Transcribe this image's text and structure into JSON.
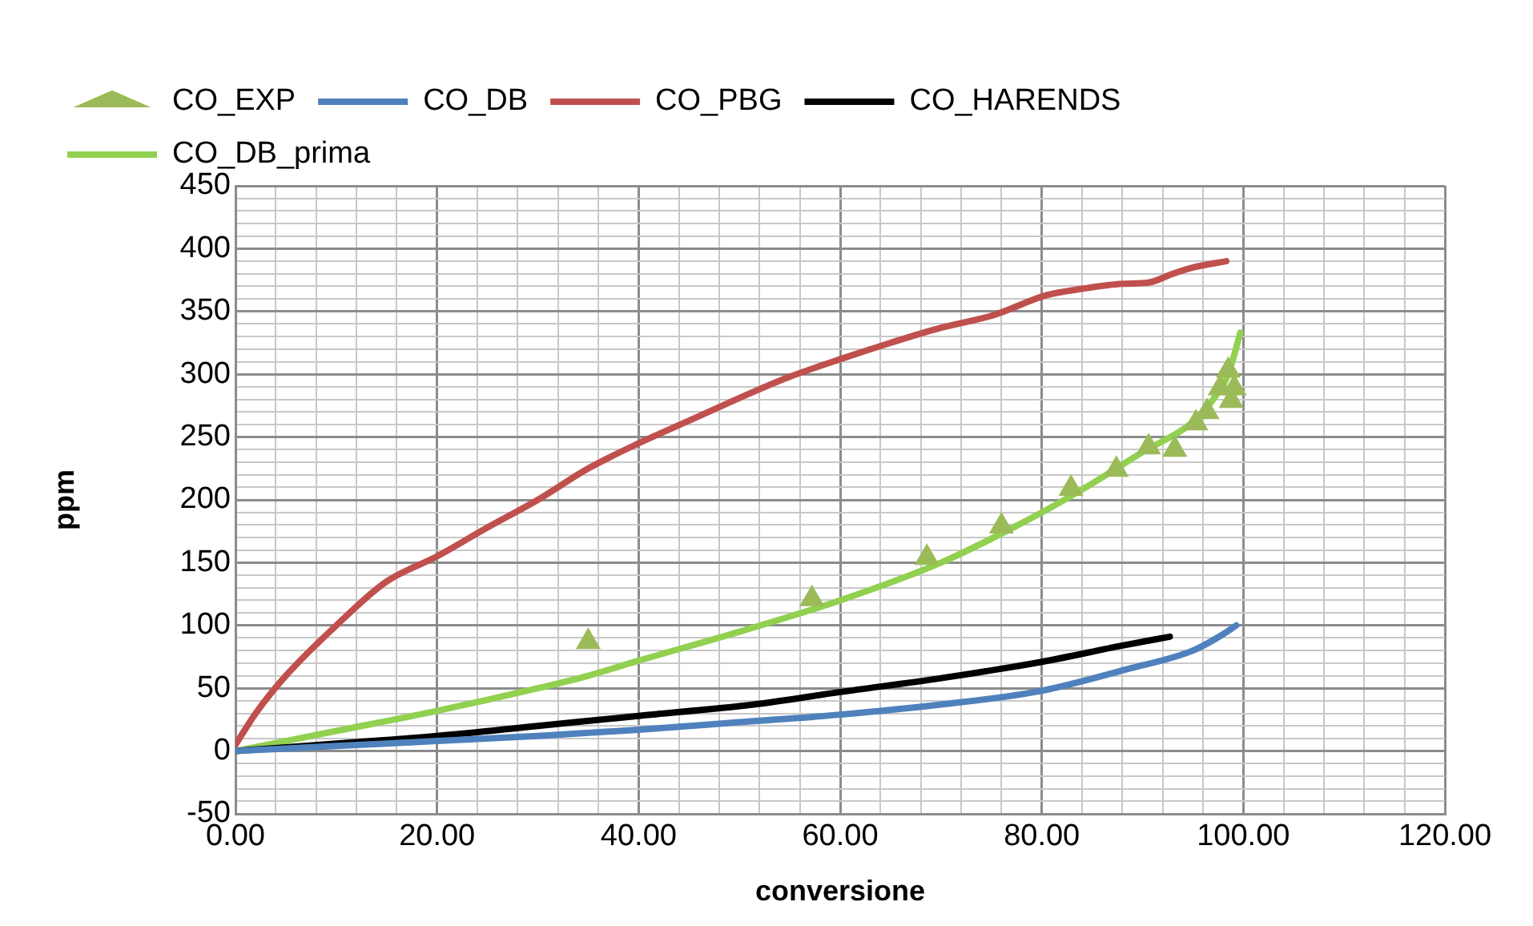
{
  "chart_data": {
    "type": "line",
    "xlabel": "conversione",
    "ylabel": "ppm",
    "legend": "top",
    "grid": true,
    "line_style": "solid",
    "xlim": [
      0,
      120
    ],
    "ylim": [
      -50,
      450
    ],
    "xticks": [
      {
        "value": 0,
        "label": "0.00"
      },
      {
        "value": 4,
        "label": null
      },
      {
        "value": 8,
        "label": null
      },
      {
        "value": 12,
        "label": null
      },
      {
        "value": 16,
        "label": null
      },
      {
        "value": 20,
        "label": "20.00"
      },
      {
        "value": 24,
        "label": null
      },
      {
        "value": 28,
        "label": null
      },
      {
        "value": 32,
        "label": null
      },
      {
        "value": 36,
        "label": null
      },
      {
        "value": 40,
        "label": "40.00"
      },
      {
        "value": 44,
        "label": null
      },
      {
        "value": 48,
        "label": null
      },
      {
        "value": 52,
        "label": null
      },
      {
        "value": 56,
        "label": null
      },
      {
        "value": 60,
        "label": "60.00"
      },
      {
        "value": 64,
        "label": null
      },
      {
        "value": 68,
        "label": null
      },
      {
        "value": 72,
        "label": null
      },
      {
        "value": 76,
        "label": null
      },
      {
        "value": 80,
        "label": "80.00"
      },
      {
        "value": 84,
        "label": null
      },
      {
        "value": 88,
        "label": null
      },
      {
        "value": 92,
        "label": null
      },
      {
        "value": 96,
        "label": null
      },
      {
        "value": 100,
        "label": "100.00"
      },
      {
        "value": 104,
        "label": null
      },
      {
        "value": 108,
        "label": null
      },
      {
        "value": 112,
        "label": null
      },
      {
        "value": 116,
        "label": null
      },
      {
        "value": 120,
        "label": "120.00"
      }
    ],
    "yticks": [
      -50,
      {
        "value": -40,
        "label": null
      },
      {
        "value": -30,
        "label": null
      },
      {
        "value": -20,
        "label": null
      },
      {
        "value": -10,
        "label": null
      },
      0,
      {
        "value": 10,
        "label": null
      },
      {
        "value": 20,
        "label": null
      },
      {
        "value": 30,
        "label": null
      },
      {
        "value": 40,
        "label": null
      },
      50,
      {
        "value": 60,
        "label": null
      },
      {
        "value": 70,
        "label": null
      },
      {
        "value": 80,
        "label": null
      },
      {
        "value": 90,
        "label": null
      },
      100,
      {
        "value": 110,
        "label": null
      },
      {
        "value": 120,
        "label": null
      },
      {
        "value": 130,
        "label": null
      },
      {
        "value": 140,
        "label": null
      },
      150,
      {
        "value": 160,
        "label": null
      },
      {
        "value": 170,
        "label": null
      },
      {
        "value": 180,
        "label": null
      },
      {
        "value": 190,
        "label": null
      },
      200,
      {
        "value": 210,
        "label": null
      },
      {
        "value": 220,
        "label": null
      },
      {
        "value": 230,
        "label": null
      },
      {
        "value": 240,
        "label": null
      },
      250,
      {
        "value": 260,
        "label": null
      },
      {
        "value": 270,
        "label": null
      },
      {
        "value": 280,
        "label": null
      },
      {
        "value": 290,
        "label": null
      },
      300,
      {
        "value": 310,
        "label": null
      },
      {
        "value": 320,
        "label": null
      },
      {
        "value": 330,
        "label": null
      },
      {
        "value": 340,
        "label": null
      },
      350,
      {
        "value": 360,
        "label": null
      },
      {
        "value": 370,
        "label": null
      },
      {
        "value": 380,
        "label": null
      },
      {
        "value": 390,
        "label": null
      },
      400,
      {
        "value": 410,
        "label": null
      },
      {
        "value": 420,
        "label": null
      },
      {
        "value": 430,
        "label": null
      },
      {
        "value": 440,
        "label": null
      },
      450
    ],
    "series": [
      {
        "name": "CO_EXP",
        "type": "scatter",
        "marker": "triangle",
        "color": "#9bbb59",
        "x": [
          35,
          57.2,
          68.6,
          76,
          82.9,
          87.4,
          90.6,
          93.2,
          95.3,
          96.4,
          97.7,
          98.5,
          98.8,
          99.1
        ],
        "values": [
          87,
          121,
          154,
          179,
          209,
          224,
          242,
          240,
          261,
          270,
          289,
          303,
          279,
          289
        ]
      },
      {
        "name": "CO_DB",
        "type": "line",
        "color": "#4f81bd",
        "x": [
          0,
          10,
          20,
          30,
          40,
          50,
          60,
          70,
          80,
          88.4,
          95,
          98,
          99.3
        ],
        "values": [
          0,
          4,
          8,
          12,
          17,
          23,
          29,
          37,
          48,
          65,
          80,
          93,
          100
        ]
      },
      {
        "name": "CO_PBG",
        "type": "line",
        "color": "#c0504d",
        "x": [
          0,
          2,
          5,
          10,
          15,
          20,
          25,
          30,
          35,
          40,
          45,
          51.4,
          55,
          60,
          65,
          70,
          75.2,
          80.5,
          84,
          88,
          90.6,
          93,
          95,
          98.3
        ],
        "values": [
          5,
          30,
          60,
          100,
          135,
          155,
          178,
          200,
          225,
          245,
          263,
          286,
          298,
          312,
          325,
          337,
          347,
          363,
          368,
          372,
          373,
          380,
          385,
          390
        ]
      },
      {
        "name": "CO_HARENDS",
        "type": "line",
        "color": "#000000",
        "x": [
          0,
          10,
          20,
          30,
          40,
          51.4,
          60,
          70,
          80,
          88,
          92.7
        ],
        "values": [
          0,
          6,
          12,
          20,
          28,
          37,
          47,
          58,
          71,
          84,
          91
        ]
      },
      {
        "name": "CO_DB_prima",
        "type": "line",
        "color": "#92d050",
        "x": [
          0,
          10,
          20,
          30,
          35,
          40,
          50,
          60,
          70,
          80,
          85,
          90,
          95,
          97,
          98.5,
          99.7
        ],
        "values": [
          0,
          16,
          32,
          50,
          60,
          72,
          95,
          120,
          150,
          190,
          213,
          238,
          262,
          280,
          300,
          333
        ]
      }
    ]
  }
}
